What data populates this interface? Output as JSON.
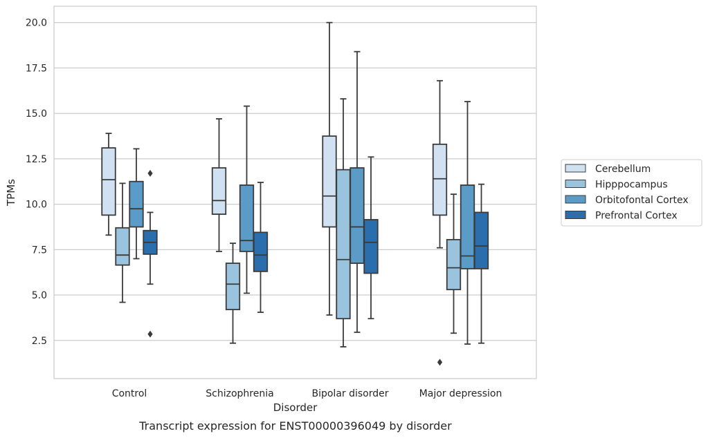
{
  "chart_data": {
    "type": "box",
    "xlabel": "Disorder",
    "ylabel": "TPMs",
    "caption": "Transcript expression for ENST00000396049 by disorder",
    "ylim": [
      0.4,
      20.9
    ],
    "yticks": [
      "2.5",
      "5.0",
      "7.5",
      "10.0",
      "12.5",
      "15.0",
      "17.5",
      "20.0"
    ],
    "grid": "horizontal",
    "legend_position": "right",
    "categories": [
      "Control",
      "Schizophrenia",
      "Bipolar disorder",
      "Major depression"
    ],
    "series": [
      {
        "name": "Cerebellum",
        "color": "#d0e2f2",
        "boxes": [
          {
            "whisker_low": 8.3,
            "q1": 9.4,
            "median": 11.35,
            "q3": 13.1,
            "whisker_high": 13.9,
            "outliers": []
          },
          {
            "whisker_low": 7.4,
            "q1": 9.45,
            "median": 10.2,
            "q3": 12.0,
            "whisker_high": 14.7,
            "outliers": []
          },
          {
            "whisker_low": 3.9,
            "q1": 8.75,
            "median": 10.45,
            "q3": 13.75,
            "whisker_high": 20.0,
            "outliers": []
          },
          {
            "whisker_low": 7.6,
            "q1": 9.4,
            "median": 11.4,
            "q3": 13.3,
            "whisker_high": 16.8,
            "outliers": [
              1.3
            ]
          }
        ]
      },
      {
        "name": "Hipppocampus",
        "color": "#9ac3dd",
        "boxes": [
          {
            "whisker_low": 4.6,
            "q1": 6.65,
            "median": 7.2,
            "q3": 8.7,
            "whisker_high": 11.15,
            "outliers": []
          },
          {
            "whisker_low": 2.35,
            "q1": 4.2,
            "median": 5.6,
            "q3": 6.75,
            "whisker_high": 7.85,
            "outliers": []
          },
          {
            "whisker_low": 2.15,
            "q1": 3.7,
            "median": 6.95,
            "q3": 11.9,
            "whisker_high": 15.8,
            "outliers": []
          },
          {
            "whisker_low": 2.9,
            "q1": 5.3,
            "median": 6.5,
            "q3": 8.05,
            "whisker_high": 10.55,
            "outliers": []
          }
        ]
      },
      {
        "name": "Orbitofontal Cortex",
        "color": "#5a9cc7",
        "boxes": [
          {
            "whisker_low": 7.0,
            "q1": 8.75,
            "median": 9.75,
            "q3": 11.25,
            "whisker_high": 13.05,
            "outliers": []
          },
          {
            "whisker_low": 5.1,
            "q1": 7.4,
            "median": 8.0,
            "q3": 11.05,
            "whisker_high": 15.4,
            "outliers": []
          },
          {
            "whisker_low": 2.95,
            "q1": 6.75,
            "median": 8.75,
            "q3": 12.0,
            "whisker_high": 18.4,
            "outliers": []
          },
          {
            "whisker_low": 2.3,
            "q1": 6.45,
            "median": 7.15,
            "q3": 11.05,
            "whisker_high": 15.65,
            "outliers": []
          }
        ]
      },
      {
        "name": "Prefrontal Cortex",
        "color": "#2a6ead",
        "boxes": [
          {
            "whisker_low": 5.6,
            "q1": 7.25,
            "median": 7.9,
            "q3": 8.55,
            "whisker_high": 9.55,
            "outliers": [
              11.7,
              2.85
            ]
          },
          {
            "whisker_low": 4.05,
            "q1": 6.3,
            "median": 7.2,
            "q3": 8.45,
            "whisker_high": 11.2,
            "outliers": []
          },
          {
            "whisker_low": 3.7,
            "q1": 6.2,
            "median": 7.9,
            "q3": 9.15,
            "whisker_high": 12.6,
            "outliers": []
          },
          {
            "whisker_low": 2.35,
            "q1": 6.45,
            "median": 7.7,
            "q3": 9.55,
            "whisker_high": 11.1,
            "outliers": []
          }
        ]
      }
    ]
  }
}
